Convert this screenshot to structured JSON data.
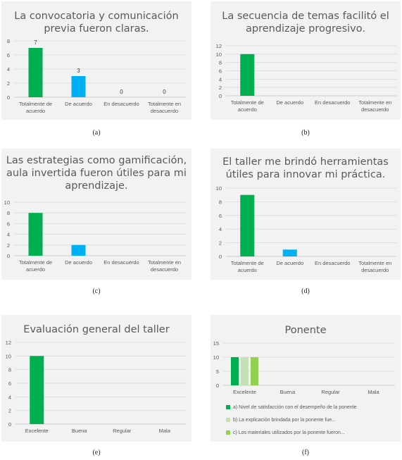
{
  "panels": [
    {
      "id": "a",
      "title_lines": [
        "La convocatoria y comunicación",
        "previa fueron claras."
      ],
      "caption": "(a)",
      "chart_data": {
        "type": "bar",
        "title": "La convocatoria y comunicación previa fueron claras.",
        "categories": [
          [
            "Totalmente de",
            "acuerdo"
          ],
          [
            "De acuerdo"
          ],
          [
            "En desacuerdo"
          ],
          [
            "Totalmente en",
            "desacuerdo"
          ]
        ],
        "values": [
          7,
          3,
          0,
          0
        ],
        "data_labels": [
          "7",
          "3",
          "0",
          "0"
        ],
        "bar_colors": [
          "#00b050",
          "#00b0f0",
          "#00b050",
          "#00b050"
        ],
        "ylim": [
          0,
          8
        ],
        "yticks": [
          0,
          2,
          4,
          6,
          8
        ],
        "grid": true
      }
    },
    {
      "id": "b",
      "title_lines": [
        "La secuencia de temas facilitó el",
        "aprendizaje progresivo."
      ],
      "caption": "(b)",
      "chart_data": {
        "type": "bar",
        "title": "La secuencia de temas facilitó el aprendizaje progresivo.",
        "categories": [
          [
            "Totalmente de",
            "acuerdo"
          ],
          [
            "De acuerdo"
          ],
          [
            "En desacuerdo"
          ],
          [
            "Totalmente en",
            "desacuerdo"
          ]
        ],
        "values": [
          10,
          0,
          0,
          0
        ],
        "bar_colors": [
          "#00b050",
          "#00b050",
          "#00b050",
          "#00b050"
        ],
        "ylim": [
          0,
          12
        ],
        "yticks": [
          0,
          2,
          4,
          6,
          8,
          10,
          12
        ],
        "grid": true
      }
    },
    {
      "id": "c",
      "title_lines": [
        "Las estrategias como gamificación,",
        "aula invertida fueron útiles para mi",
        "aprendizaje."
      ],
      "caption": "(c)",
      "chart_data": {
        "type": "bar",
        "title": "Las estrategias como gamificación, aula invertida fueron útiles para mi aprendizaje.",
        "categories": [
          [
            "Totalmente de",
            "acuerdo"
          ],
          [
            "De acuerdo"
          ],
          [
            "En desacuerdo"
          ],
          [
            "Totalmente en",
            "desacuerdo"
          ]
        ],
        "values": [
          8,
          2,
          0,
          0
        ],
        "bar_colors": [
          "#00b050",
          "#00b0f0",
          "#00b050",
          "#00b050"
        ],
        "ylim": [
          0,
          10
        ],
        "yticks": [
          0,
          2,
          4,
          6,
          8,
          10
        ],
        "grid": true
      }
    },
    {
      "id": "d",
      "title_lines": [
        "El taller me brindó herramientas",
        "útiles para innovar mi práctica."
      ],
      "caption": "(d)",
      "chart_data": {
        "type": "bar",
        "title": "El taller me brindó herramientas útiles para innovar mi práctica.",
        "categories": [
          [
            "Totalmente de",
            "acuerdo"
          ],
          [
            "De acuerdo"
          ],
          [
            "En desacuerdo"
          ],
          [
            "Totalmente en",
            "desacuerdo"
          ]
        ],
        "values": [
          9,
          1,
          0,
          0
        ],
        "bar_colors": [
          "#00b050",
          "#00b0f0",
          "#00b050",
          "#00b050"
        ],
        "ylim": [
          0,
          10
        ],
        "yticks": [
          0,
          2,
          4,
          6,
          8,
          10
        ],
        "grid": true
      }
    },
    {
      "id": "e",
      "title_lines": [
        "Evaluación general del taller"
      ],
      "caption": "(e)",
      "chart_data": {
        "type": "bar",
        "title": "Evaluación general del taller",
        "categories": [
          [
            "Excelente"
          ],
          [
            "Buena"
          ],
          [
            "Regular"
          ],
          [
            "Mala"
          ]
        ],
        "values": [
          10,
          0,
          0,
          0
        ],
        "bar_colors": [
          "#00b050",
          "#00b050",
          "#00b050",
          "#00b050"
        ],
        "ylim": [
          0,
          12
        ],
        "yticks": [
          0,
          2,
          4,
          6,
          8,
          10,
          12
        ],
        "grid": true
      }
    },
    {
      "id": "f",
      "title_lines": [
        "Ponente"
      ],
      "caption": "(f)",
      "chart_data": {
        "type": "bar",
        "title": "Ponente",
        "categories": [
          [
            "Excelente"
          ],
          [
            "Buena"
          ],
          [
            "Regular"
          ],
          [
            "Mala"
          ]
        ],
        "series": [
          {
            "name": "a) Nivel de satisfacción con el desempeño de la ponente",
            "values": [
              10,
              0,
              0,
              0
            ],
            "color": "#00b050"
          },
          {
            "name": "b) La explicación brindada por la ponente fue...",
            "values": [
              10,
              0,
              0,
              0
            ],
            "color": "#c5e0b4"
          },
          {
            "name": "c) Los materiales utilizados por la ponente fueron...",
            "values": [
              10,
              0,
              0,
              0
            ],
            "color": "#92d050"
          }
        ],
        "ylim": [
          0,
          15
        ],
        "yticks": [
          0,
          5,
          10,
          15
        ],
        "grid": true,
        "legend": "bottom"
      }
    }
  ]
}
